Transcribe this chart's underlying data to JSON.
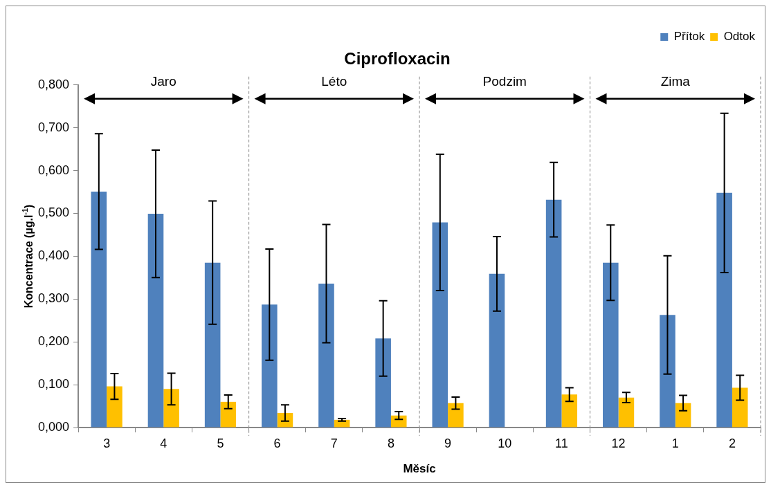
{
  "chart_data": {
    "type": "bar",
    "title": "Ciprofloxacin",
    "xlabel": "Měsíc",
    "ylabel": "Koncentrace (µg.l$^{-1}$)",
    "categories": [
      "3",
      "4",
      "5",
      "6",
      "7",
      "8",
      "9",
      "10",
      "11",
      "12",
      "1",
      "2"
    ],
    "series": [
      {
        "name": "Přítok",
        "color": "#4f81bd",
        "values": [
          0.551,
          0.499,
          0.385,
          0.287,
          0.336,
          0.208,
          0.479,
          0.359,
          0.532,
          0.385,
          0.263,
          0.548
        ],
        "errors": [
          0.135,
          0.149,
          0.144,
          0.13,
          0.138,
          0.088,
          0.159,
          0.087,
          0.087,
          0.088,
          0.138,
          0.186
        ]
      },
      {
        "name": "Odtok",
        "color": "#ffc000",
        "values": [
          0.096,
          0.09,
          0.06,
          0.034,
          0.018,
          0.028,
          0.057,
          0,
          0.077,
          0.07,
          0.057,
          0.093
        ],
        "errors": [
          0.03,
          0.037,
          0.016,
          0.019,
          0.003,
          0.009,
          0.014,
          null,
          0.016,
          0.012,
          0.018,
          0.029
        ]
      }
    ],
    "ylim": [
      0,
      0.8
    ],
    "yticks": [
      {
        "value": 0,
        "label": "0,000"
      },
      {
        "value": 0.1,
        "label": "0,100"
      },
      {
        "value": 0.2,
        "label": "0,200"
      },
      {
        "value": 0.3,
        "label": "0,300"
      },
      {
        "value": 0.4,
        "label": "0,400"
      },
      {
        "value": 0.5,
        "label": "0,500"
      },
      {
        "value": 0.6,
        "label": "0,600"
      },
      {
        "value": 0.7,
        "label": "0,700"
      },
      {
        "value": 0.8,
        "label": "0,800"
      }
    ],
    "annotations": [
      "Jaro",
      "Léto",
      "Podzim",
      "Zima"
    ],
    "grid": false,
    "legend": "top right"
  }
}
